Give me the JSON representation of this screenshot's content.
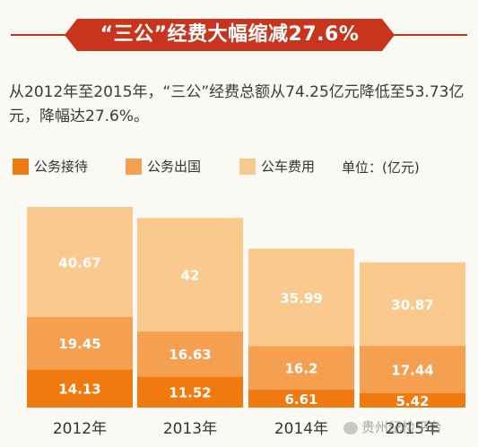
{
  "header": {
    "title": "“三公”经费大幅缩减27.6%"
  },
  "description": "从2012年至2015年，“三公”经费总额从74.25亿元降低至53.73亿元，降幅达27.6%。",
  "legend": {
    "items": [
      {
        "label": "公务接待",
        "color": "#f07a10"
      },
      {
        "label": "公务出国",
        "color": "#f4a050"
      },
      {
        "label": "公车费用",
        "color": "#f9c98e"
      }
    ],
    "unit": "单位：(亿元)"
  },
  "watermark": "贵州纪检平台",
  "colors": {
    "accent": "#c9341d",
    "background": "#fbf9f4"
  },
  "chart_data": {
    "type": "bar",
    "stacked": true,
    "categories": [
      "2012年",
      "2013年",
      "2014年",
      "2015年"
    ],
    "series": [
      {
        "name": "公务接待",
        "values": [
          14.13,
          11.52,
          6.61,
          5.42
        ],
        "color": "#f07a10"
      },
      {
        "name": "公务出国",
        "values": [
          19.45,
          16.63,
          16.2,
          17.44
        ],
        "color": "#f4a050"
      },
      {
        "name": "公车费用",
        "values": [
          40.67,
          42,
          35.99,
          30.87
        ],
        "color": "#f9c98e"
      }
    ],
    "value_labels": [
      [
        "14.13",
        "11.52",
        "6.61",
        "5.42"
      ],
      [
        "19.45",
        "16.63",
        "16.2",
        "17.44"
      ],
      [
        "40.67",
        "42",
        "35.99",
        "30.87"
      ]
    ],
    "legend_position": "top"
  }
}
